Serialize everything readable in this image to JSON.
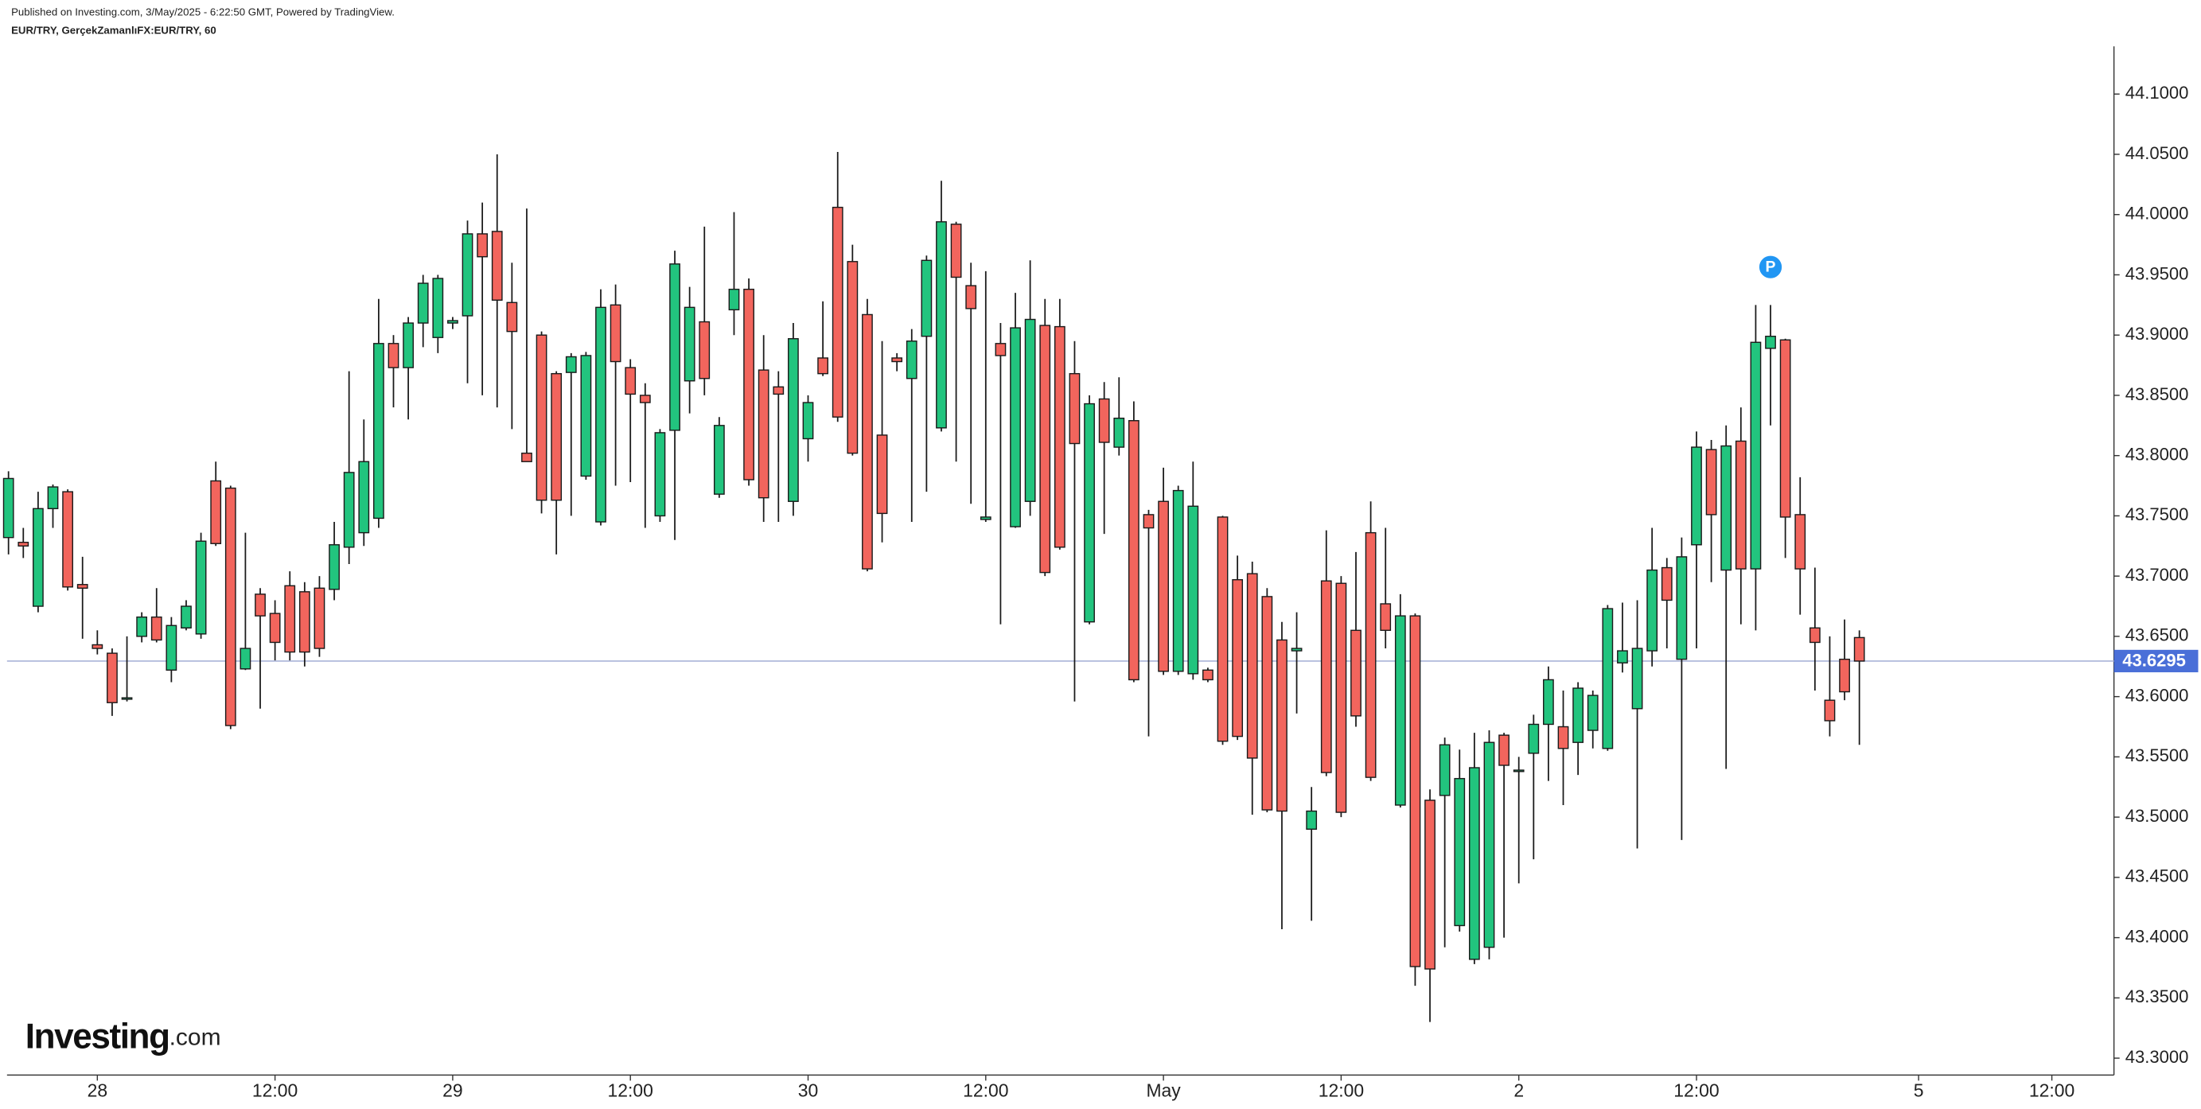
{
  "header": {
    "published": "Published on Investing.com, 3/May/2025 - 6:22:50 GMT, Powered by TradingView.",
    "symbol": "EUR/TRY, GerçekZamanlıFX:EUR/TRY, 60"
  },
  "logo": {
    "main": "Investing",
    "suffix": ".com"
  },
  "chart_data": {
    "type": "candlestick",
    "up_color": "#22c47e",
    "down_color": "#f2655d",
    "border_color": "#1a1a1a",
    "xlim": [
      -0.1,
      142.1
    ],
    "ylim": [
      43.286,
      44.1396
    ],
    "xticks": [
      {
        "value": 6,
        "label": "28"
      },
      {
        "value": 18,
        "label": "12:00"
      },
      {
        "value": 30,
        "label": "29"
      },
      {
        "value": 42,
        "label": "12:00"
      },
      {
        "value": 54,
        "label": "30"
      },
      {
        "value": 66,
        "label": "12:00"
      },
      {
        "value": 78,
        "label": "May"
      },
      {
        "value": 90,
        "label": "12:00"
      },
      {
        "value": 102,
        "label": "2"
      },
      {
        "value": 114,
        "label": "12:00"
      },
      {
        "value": 129,
        "label": "5"
      },
      {
        "value": 138,
        "label": "12:00"
      }
    ],
    "yticks": [
      {
        "value": 43.3,
        "label": "43.3000"
      },
      {
        "value": 43.35,
        "label": "43.3500"
      },
      {
        "value": 43.4,
        "label": "43.4000"
      },
      {
        "value": 43.45,
        "label": "43.4500"
      },
      {
        "value": 43.5,
        "label": "43.5000"
      },
      {
        "value": 43.55,
        "label": "43.5500"
      },
      {
        "value": 43.6,
        "label": "43.6000"
      },
      {
        "value": 43.65,
        "label": "43.6500"
      },
      {
        "value": 43.7,
        "label": "43.7000"
      },
      {
        "value": 43.75,
        "label": "43.7500"
      },
      {
        "value": 43.8,
        "label": "43.8000"
      },
      {
        "value": 43.85,
        "label": "43.8500"
      },
      {
        "value": 43.9,
        "label": "43.9000"
      },
      {
        "value": 43.95,
        "label": "43.9500"
      },
      {
        "value": 44.0,
        "label": "44.0000"
      },
      {
        "value": 44.05,
        "label": "44.0500"
      },
      {
        "value": 44.1,
        "label": "44.1000"
      }
    ],
    "last_price": 43.6295,
    "last_price_color": "#4a6fd8",
    "marker": {
      "label": "P",
      "candle": 119,
      "color": "#2196f3"
    },
    "open": [
      43.732,
      43.728,
      43.675,
      43.756,
      43.77,
      43.693,
      43.643,
      43.636,
      43.598,
      43.65,
      43.666,
      43.622,
      43.657,
      43.652,
      43.779,
      43.773,
      43.623,
      43.685,
      43.669,
      43.692,
      43.687,
      43.69,
      43.689,
      43.724,
      43.736,
      43.748,
      43.893,
      43.873,
      43.91,
      43.898,
      43.91,
      43.916,
      43.984,
      43.986,
      43.927,
      43.802,
      43.9,
      43.868,
      43.869,
      43.783,
      43.745,
      43.925,
      43.873,
      43.85,
      43.75,
      43.821,
      43.862,
      43.911,
      43.768,
      43.921,
      43.938,
      43.871,
      43.857,
      43.762,
      43.814,
      43.881,
      44.006,
      43.961,
      43.917,
      43.817,
      43.881,
      43.864,
      43.899,
      43.823,
      43.992,
      43.941,
      43.747,
      43.893,
      43.741,
      43.762,
      43.908,
      43.907,
      43.868,
      43.662,
      43.847,
      43.807,
      43.829,
      43.751,
      43.762,
      43.621,
      43.619,
      43.622,
      43.749,
      43.697,
      43.702,
      43.683,
      43.647,
      43.638,
      43.49,
      43.696,
      43.694,
      43.655,
      43.736,
      43.677,
      43.51,
      43.667,
      43.514,
      43.518,
      43.41,
      43.382,
      43.392,
      43.568,
      43.538,
      43.553,
      43.577,
      43.575,
      43.562,
      43.572,
      43.557,
      43.628,
      43.59,
      43.638,
      43.707,
      43.631,
      43.726,
      43.805,
      43.705,
      43.812,
      43.706,
      43.889,
      43.896,
      43.751,
      43.657,
      43.597,
      43.631,
      43.649
    ],
    "high": [
      43.787,
      43.74,
      43.77,
      43.776,
      43.772,
      43.716,
      43.655,
      43.64,
      43.65,
      43.67,
      43.69,
      43.666,
      43.68,
      43.736,
      43.795,
      43.775,
      43.736,
      43.69,
      43.68,
      43.704,
      43.695,
      43.7,
      43.745,
      43.87,
      43.83,
      43.93,
      43.9,
      43.915,
      43.95,
      43.95,
      43.915,
      43.995,
      44.01,
      44.05,
      43.96,
      44.005,
      43.903,
      43.87,
      43.885,
      43.886,
      43.938,
      43.942,
      43.88,
      43.86,
      43.822,
      43.97,
      43.94,
      43.99,
      43.832,
      44.002,
      43.947,
      43.9,
      43.87,
      43.91,
      43.85,
      43.928,
      44.052,
      43.975,
      43.93,
      43.895,
      43.885,
      43.905,
      43.966,
      44.028,
      43.994,
      43.96,
      43.953,
      43.91,
      43.935,
      43.962,
      43.93,
      43.93,
      43.895,
      43.85,
      43.861,
      43.865,
      43.845,
      43.755,
      43.79,
      43.775,
      43.795,
      43.624,
      43.75,
      43.717,
      43.712,
      43.69,
      43.662,
      43.67,
      43.525,
      43.738,
      43.7,
      43.72,
      43.762,
      43.74,
      43.685,
      43.669,
      43.523,
      43.566,
      43.556,
      43.57,
      43.572,
      43.57,
      43.55,
      43.585,
      43.625,
      43.605,
      43.612,
      43.605,
      43.676,
      43.678,
      43.68,
      43.74,
      43.715,
      43.732,
      43.82,
      43.813,
      43.825,
      43.84,
      43.925,
      43.925,
      43.897,
      43.782,
      43.707,
      43.65,
      43.664,
      43.655
    ],
    "low": [
      43.718,
      43.715,
      43.67,
      43.74,
      43.688,
      43.648,
      43.635,
      43.584,
      43.596,
      43.645,
      43.645,
      43.612,
      43.655,
      43.648,
      43.725,
      43.573,
      43.622,
      43.59,
      43.63,
      43.63,
      43.625,
      43.633,
      43.68,
      43.71,
      43.725,
      43.74,
      43.84,
      43.83,
      43.89,
      43.885,
      43.905,
      43.86,
      43.85,
      43.84,
      43.822,
      43.797,
      43.752,
      43.718,
      43.75,
      43.78,
      43.742,
      43.775,
      43.778,
      43.74,
      43.745,
      43.73,
      43.835,
      43.85,
      43.765,
      43.9,
      43.775,
      43.745,
      43.745,
      43.75,
      43.795,
      43.866,
      43.828,
      43.8,
      43.704,
      43.728,
      43.87,
      43.745,
      43.77,
      43.82,
      43.795,
      43.76,
      43.745,
      43.66,
      43.74,
      43.75,
      43.7,
      43.722,
      43.596,
      43.66,
      43.735,
      43.8,
      43.612,
      43.567,
      43.618,
      43.618,
      43.614,
      43.612,
      43.56,
      43.564,
      43.502,
      43.504,
      43.407,
      43.586,
      43.414,
      43.534,
      43.5,
      43.575,
      43.53,
      43.64,
      43.508,
      43.36,
      43.33,
      43.392,
      43.405,
      43.378,
      43.382,
      43.4,
      43.445,
      43.465,
      43.53,
      43.51,
      43.535,
      43.557,
      43.555,
      43.62,
      43.474,
      43.625,
      43.64,
      43.481,
      43.64,
      43.695,
      43.54,
      43.66,
      43.655,
      43.825,
      43.715,
      43.668,
      43.605,
      43.567,
      43.597,
      43.56
    ],
    "close": [
      43.781,
      43.725,
      43.756,
      43.774,
      43.691,
      43.69,
      43.64,
      43.595,
      43.599,
      43.666,
      43.647,
      43.659,
      43.675,
      43.729,
      43.727,
      43.576,
      43.64,
      43.667,
      43.645,
      43.637,
      43.637,
      43.64,
      43.726,
      43.786,
      43.795,
      43.893,
      43.873,
      43.91,
      43.943,
      43.947,
      43.912,
      43.984,
      43.965,
      43.929,
      43.903,
      43.795,
      43.763,
      43.763,
      43.882,
      43.883,
      43.923,
      43.878,
      43.851,
      43.844,
      43.819,
      43.959,
      43.923,
      43.864,
      43.825,
      43.938,
      43.78,
      43.765,
      43.851,
      43.897,
      43.844,
      43.868,
      43.832,
      43.802,
      43.706,
      43.752,
      43.878,
      43.895,
      43.962,
      43.994,
      43.948,
      43.922,
      43.749,
      43.883,
      43.906,
      43.913,
      43.703,
      43.724,
      43.81,
      43.843,
      43.811,
      43.831,
      43.614,
      43.74,
      43.621,
      43.771,
      43.758,
      43.614,
      43.563,
      43.567,
      43.549,
      43.506,
      43.505,
      43.64,
      43.505,
      43.537,
      43.504,
      43.584,
      43.533,
      43.655,
      43.667,
      43.376,
      43.374,
      43.56,
      43.532,
      43.541,
      43.562,
      43.543,
      43.539,
      43.577,
      43.614,
      43.557,
      43.607,
      43.601,
      43.673,
      43.638,
      43.64,
      43.705,
      43.68,
      43.716,
      43.807,
      43.751,
      43.808,
      43.706,
      43.894,
      43.899,
      43.749,
      43.706,
      43.645,
      43.58,
      43.604,
      43.6295
    ]
  }
}
